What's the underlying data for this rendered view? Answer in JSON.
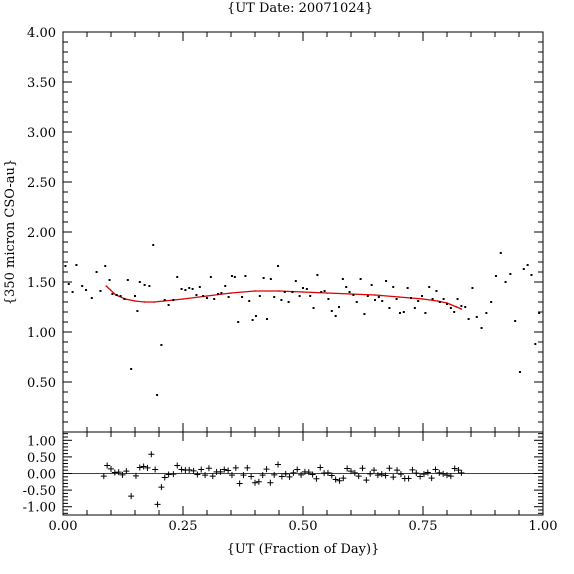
{
  "chart_data": [
    {
      "type": "scatter",
      "title": "{UT Date: 20071024}",
      "ylabel": "{350 micron CSO-au}",
      "xlim": [
        0.0,
        1.0
      ],
      "ylim": [
        0.0,
        4.0
      ],
      "xticks": [
        "0.00",
        "0.25",
        "0.50",
        "0.75",
        "1.00"
      ],
      "yticks": [
        "0.50",
        "1.00",
        "1.50",
        "2.00",
        "2.50",
        "3.00",
        "3.50",
        "4.00"
      ],
      "colors": {
        "points": "#000000",
        "fit": "#dd0000"
      },
      "series": [
        {
          "marker": "dot",
          "points": [
            [
              0.005,
              1.66
            ],
            [
              0.012,
              1.48
            ],
            [
              0.02,
              1.4
            ],
            [
              0.028,
              1.67
            ],
            [
              0.04,
              1.46
            ],
            [
              0.048,
              1.42
            ],
            [
              0.06,
              1.34
            ],
            [
              0.07,
              1.6
            ],
            [
              0.078,
              1.41
            ],
            [
              0.088,
              1.66
            ],
            [
              0.097,
              1.52
            ],
            [
              0.103,
              1.38
            ],
            [
              0.112,
              1.37
            ],
            [
              0.12,
              1.36
            ],
            [
              0.128,
              1.33
            ],
            [
              0.135,
              1.52
            ],
            [
              0.142,
              0.63
            ],
            [
              0.15,
              1.36
            ],
            [
              0.155,
              1.21
            ],
            [
              0.16,
              1.5
            ],
            [
              0.17,
              1.47
            ],
            [
              0.18,
              1.46
            ],
            [
              0.188,
              1.87
            ],
            [
              0.196,
              0.37
            ],
            [
              0.205,
              0.87
            ],
            [
              0.212,
              1.32
            ],
            [
              0.22,
              1.27
            ],
            [
              0.23,
              1.32
            ],
            [
              0.238,
              1.55
            ],
            [
              0.247,
              1.43
            ],
            [
              0.255,
              1.42
            ],
            [
              0.263,
              1.44
            ],
            [
              0.27,
              1.43
            ],
            [
              0.278,
              1.37
            ],
            [
              0.285,
              1.45
            ],
            [
              0.292,
              1.36
            ],
            [
              0.3,
              1.34
            ],
            [
              0.308,
              1.55
            ],
            [
              0.315,
              1.33
            ],
            [
              0.323,
              1.38
            ],
            [
              0.33,
              1.39
            ],
            [
              0.338,
              1.46
            ],
            [
              0.345,
              1.35
            ],
            [
              0.352,
              1.56
            ],
            [
              0.358,
              1.55
            ],
            [
              0.365,
              1.1
            ],
            [
              0.373,
              1.35
            ],
            [
              0.38,
              1.56
            ],
            [
              0.388,
              1.31
            ],
            [
              0.395,
              1.12
            ],
            [
              0.402,
              1.16
            ],
            [
              0.41,
              1.36
            ],
            [
              0.418,
              1.54
            ],
            [
              0.425,
              1.13
            ],
            [
              0.433,
              1.53
            ],
            [
              0.44,
              1.35
            ],
            [
              0.448,
              1.66
            ],
            [
              0.455,
              1.32
            ],
            [
              0.462,
              1.4
            ],
            [
              0.47,
              1.3
            ],
            [
              0.478,
              1.4
            ],
            [
              0.485,
              1.51
            ],
            [
              0.493,
              1.36
            ],
            [
              0.5,
              1.44
            ],
            [
              0.508,
              1.43
            ],
            [
              0.515,
              1.36
            ],
            [
              0.522,
              1.24
            ],
            [
              0.53,
              1.57
            ],
            [
              0.538,
              1.4
            ],
            [
              0.545,
              1.41
            ],
            [
              0.553,
              1.33
            ],
            [
              0.56,
              1.21
            ],
            [
              0.568,
              1.16
            ],
            [
              0.575,
              1.25
            ],
            [
              0.583,
              1.53
            ],
            [
              0.59,
              1.45
            ],
            [
              0.597,
              1.4
            ],
            [
              0.605,
              1.37
            ],
            [
              0.612,
              1.3
            ],
            [
              0.62,
              1.53
            ],
            [
              0.628,
              1.18
            ],
            [
              0.635,
              1.36
            ],
            [
              0.643,
              1.47
            ],
            [
              0.65,
              1.32
            ],
            [
              0.658,
              1.35
            ],
            [
              0.665,
              1.31
            ],
            [
              0.673,
              1.51
            ],
            [
              0.68,
              1.24
            ],
            [
              0.688,
              1.45
            ],
            [
              0.695,
              1.33
            ],
            [
              0.702,
              1.19
            ],
            [
              0.71,
              1.2
            ],
            [
              0.718,
              1.44
            ],
            [
              0.725,
              1.34
            ],
            [
              0.733,
              1.24
            ],
            [
              0.74,
              1.31
            ],
            [
              0.748,
              1.36
            ],
            [
              0.755,
              1.19
            ],
            [
              0.763,
              1.45
            ],
            [
              0.77,
              1.33
            ],
            [
              0.778,
              1.41
            ],
            [
              0.785,
              1.3
            ],
            [
              0.793,
              1.33
            ],
            [
              0.8,
              1.28
            ],
            [
              0.808,
              1.24
            ],
            [
              0.815,
              1.2
            ],
            [
              0.822,
              1.33
            ],
            [
              0.83,
              1.26
            ],
            [
              0.838,
              1.25
            ],
            [
              0.845,
              1.13
            ],
            [
              0.853,
              1.44
            ],
            [
              0.862,
              1.15
            ],
            [
              0.872,
              1.04
            ],
            [
              0.882,
              1.19
            ],
            [
              0.892,
              1.3
            ],
            [
              0.902,
              1.56
            ],
            [
              0.912,
              1.79
            ],
            [
              0.922,
              1.5
            ],
            [
              0.932,
              1.58
            ],
            [
              0.942,
              1.11
            ],
            [
              0.952,
              0.6
            ],
            [
              0.96,
              1.63
            ],
            [
              0.968,
              1.67
            ],
            [
              0.976,
              1.57
            ],
            [
              0.984,
              0.88
            ],
            [
              0.992,
              1.19
            ]
          ]
        },
        {
          "marker": "fit-line",
          "points": [
            [
              0.09,
              1.46
            ],
            [
              0.11,
              1.37
            ],
            [
              0.13,
              1.33
            ],
            [
              0.15,
              1.31
            ],
            [
              0.17,
              1.3
            ],
            [
              0.19,
              1.3
            ],
            [
              0.21,
              1.31
            ],
            [
              0.25,
              1.33
            ],
            [
              0.3,
              1.36
            ],
            [
              0.35,
              1.39
            ],
            [
              0.4,
              1.41
            ],
            [
              0.45,
              1.41
            ],
            [
              0.5,
              1.4
            ],
            [
              0.55,
              1.39
            ],
            [
              0.6,
              1.38
            ],
            [
              0.65,
              1.37
            ],
            [
              0.7,
              1.35
            ],
            [
              0.75,
              1.33
            ],
            [
              0.78,
              1.31
            ],
            [
              0.8,
              1.29
            ],
            [
              0.82,
              1.25
            ],
            [
              0.83,
              1.23
            ]
          ]
        }
      ]
    },
    {
      "type": "scatter",
      "xlabel": "{UT (Fraction of Day)}",
      "xlim": [
        0.0,
        1.0
      ],
      "ylim": [
        -1.25,
        1.25
      ],
      "xticks": [
        "0.00",
        "0.25",
        "0.50",
        "0.75",
        "1.00"
      ],
      "yticks": [
        "1.00",
        "0.50",
        "0.00",
        "-0.50",
        "-1.00"
      ],
      "reference_line": 0.0,
      "colors": {
        "points": "#000000",
        "reference": "#dd0000"
      },
      "series": [
        {
          "marker": "plus",
          "points": [
            [
              0.085,
              -0.08
            ],
            [
              0.092,
              0.24
            ],
            [
              0.1,
              0.14
            ],
            [
              0.108,
              0.03
            ],
            [
              0.116,
              0.04
            ],
            [
              0.124,
              -0.04
            ],
            [
              0.132,
              0.07
            ],
            [
              0.142,
              -0.68
            ],
            [
              0.152,
              -0.07
            ],
            [
              0.16,
              0.18
            ],
            [
              0.168,
              0.21
            ],
            [
              0.176,
              0.17
            ],
            [
              0.184,
              0.58
            ],
            [
              0.192,
              0.12
            ],
            [
              0.197,
              -0.93
            ],
            [
              0.205,
              -0.41
            ],
            [
              0.212,
              -0.12
            ],
            [
              0.22,
              -0.03
            ],
            [
              0.23,
              -0.02
            ],
            [
              0.238,
              0.24
            ],
            [
              0.247,
              0.12
            ],
            [
              0.255,
              0.1
            ],
            [
              0.263,
              0.11
            ],
            [
              0.272,
              0.08
            ],
            [
              0.28,
              -0.03
            ],
            [
              0.288,
              0.12
            ],
            [
              0.296,
              -0.05
            ],
            [
              0.304,
              0.16
            ],
            [
              0.312,
              -0.08
            ],
            [
              0.32,
              0.05
            ],
            [
              0.328,
              0.05
            ],
            [
              0.336,
              0.12
            ],
            [
              0.344,
              0.09
            ],
            [
              0.352,
              -0.05
            ],
            [
              0.36,
              0.17
            ],
            [
              0.368,
              -0.3
            ],
            [
              0.376,
              -0.05
            ],
            [
              0.384,
              0.17
            ],
            [
              0.392,
              -0.09
            ],
            [
              0.4,
              -0.28
            ],
            [
              0.408,
              -0.25
            ],
            [
              0.416,
              -0.05
            ],
            [
              0.424,
              0.13
            ],
            [
              0.432,
              -0.28
            ],
            [
              0.44,
              -0.04
            ],
            [
              0.448,
              0.27
            ],
            [
              0.456,
              -0.09
            ],
            [
              0.464,
              -0.01
            ],
            [
              0.472,
              -0.1
            ],
            [
              0.48,
              0.02
            ],
            [
              0.488,
              0.12
            ],
            [
              0.496,
              -0.04
            ],
            [
              0.504,
              0.05
            ],
            [
              0.512,
              0.04
            ],
            [
              0.52,
              -0.03
            ],
            [
              0.528,
              -0.16
            ],
            [
              0.536,
              0.18
            ],
            [
              0.544,
              0.01
            ],
            [
              0.552,
              0.02
            ],
            [
              0.56,
              -0.06
            ],
            [
              0.568,
              -0.18
            ],
            [
              0.576,
              -0.22
            ],
            [
              0.584,
              -0.14
            ],
            [
              0.592,
              0.15
            ],
            [
              0.6,
              0.07
            ],
            [
              0.608,
              0.02
            ],
            [
              0.616,
              -0.08
            ],
            [
              0.624,
              0.16
            ],
            [
              0.632,
              -0.2
            ],
            [
              0.64,
              -0.01
            ],
            [
              0.648,
              0.1
            ],
            [
              0.656,
              -0.05
            ],
            [
              0.664,
              -0.02
            ],
            [
              0.672,
              -0.06
            ],
            [
              0.68,
              0.16
            ],
            [
              0.688,
              -0.11
            ],
            [
              0.696,
              0.1
            ],
            [
              0.704,
              -0.02
            ],
            [
              0.712,
              -0.15
            ],
            [
              0.72,
              -0.15
            ],
            [
              0.728,
              0.11
            ],
            [
              0.736,
              0.01
            ],
            [
              0.744,
              -0.09
            ],
            [
              0.752,
              -0.02
            ],
            [
              0.76,
              0.03
            ],
            [
              0.768,
              -0.14
            ],
            [
              0.776,
              0.12
            ],
            [
              0.784,
              0.02
            ],
            [
              0.792,
              -0.01
            ],
            [
              0.8,
              -0.05
            ],
            [
              0.808,
              -0.08
            ],
            [
              0.816,
              0.15
            ],
            [
              0.824,
              0.1
            ],
            [
              0.83,
              0.02
            ]
          ]
        }
      ]
    }
  ]
}
